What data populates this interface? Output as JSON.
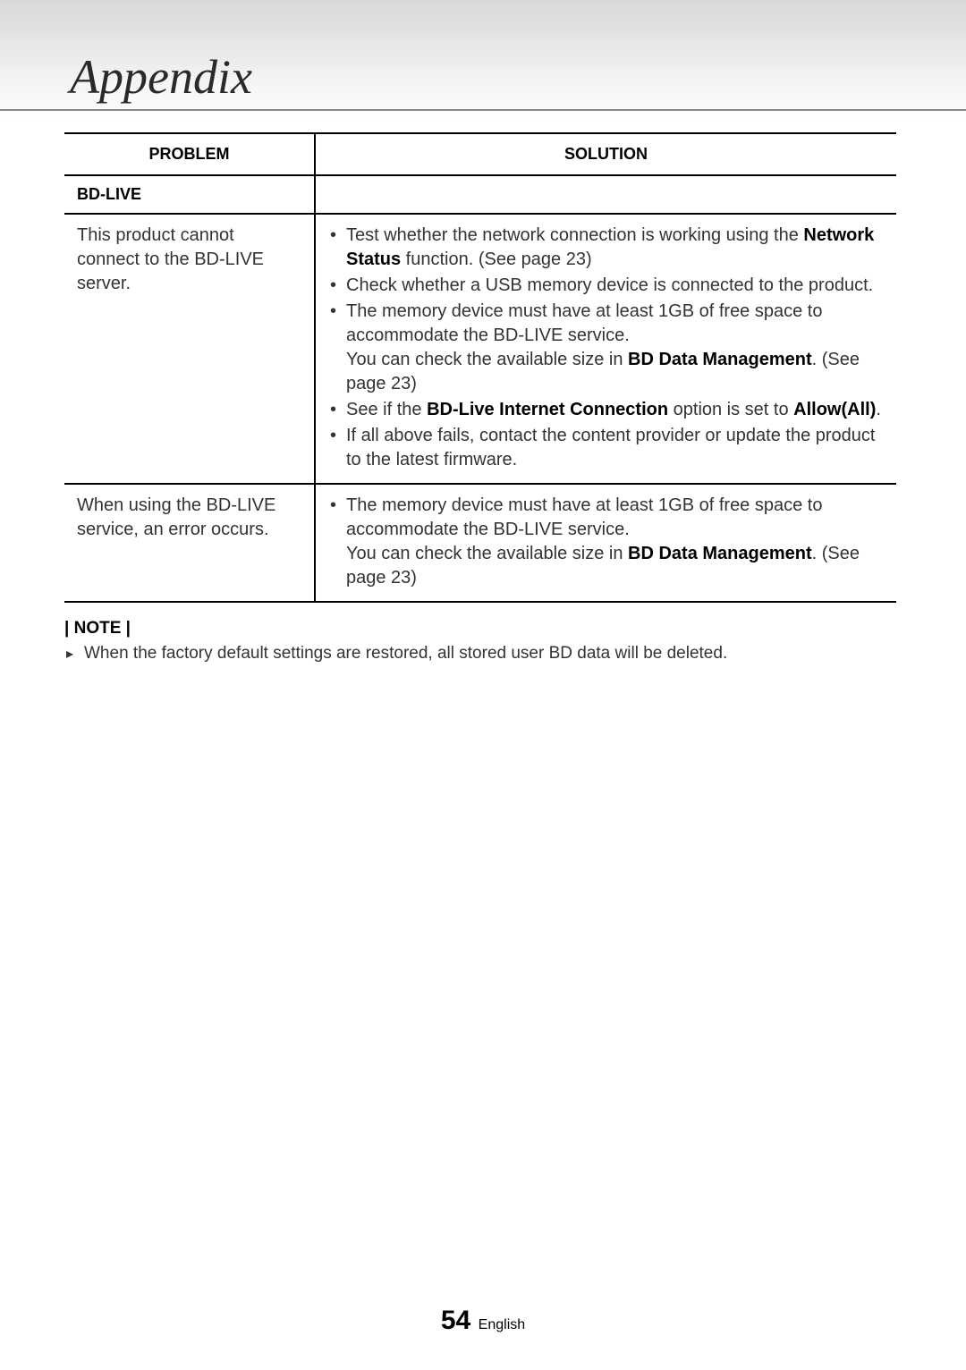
{
  "section_title": "Appendix",
  "table": {
    "header_problem": "PROBLEM",
    "header_solution": "SOLUTION",
    "subheader": "BD-LIVE",
    "rows": [
      {
        "problem": "This product cannot connect to the BD-LIVE server.",
        "solution_html": "<ul class=\"bullet-list\"><li>Test whether the network connection is working using the <b>Network Status</b> function. (See page 23)</li><li>Check whether a USB memory device is connected to the product.</li><li>The memory device must have at least 1GB of free space to accommodate the BD-LIVE service.<br>You can check the available size in <b>BD Data Management</b>. (See page 23)</li><li>See if the <b>BD-Live Internet Connection</b> option is set to <b>Allow(All)</b>.</li><li>If all above fails, contact the content provider or update the product to the latest firmware.</li></ul>"
      },
      {
        "problem": "When using the BD-LIVE service, an error occurs.",
        "solution_html": "<ul class=\"bullet-list\"><li>The memory device must have at least 1GB of free space to accommodate the BD-LIVE service.<br>You can check the available size in <b>BD Data Management</b>. (See page 23)</li></ul>"
      }
    ]
  },
  "note": {
    "label": "| NOTE |",
    "text": "When the factory default settings are restored, all stored user BD data will be deleted."
  },
  "footer": {
    "page_number": "54",
    "language": "English"
  },
  "colors": {
    "header_gradient_top": "#d8d8d8",
    "header_gradient_bottom": "#ffffff",
    "title_color": "#2a2a2a",
    "border_color": "#000000",
    "body_text": "#333333",
    "background": "#ffffff"
  },
  "typography": {
    "section_title_fontsize": 54,
    "table_header_fontsize": 18,
    "body_fontsize": 20,
    "note_fontsize": 19,
    "page_number_fontsize": 30
  }
}
